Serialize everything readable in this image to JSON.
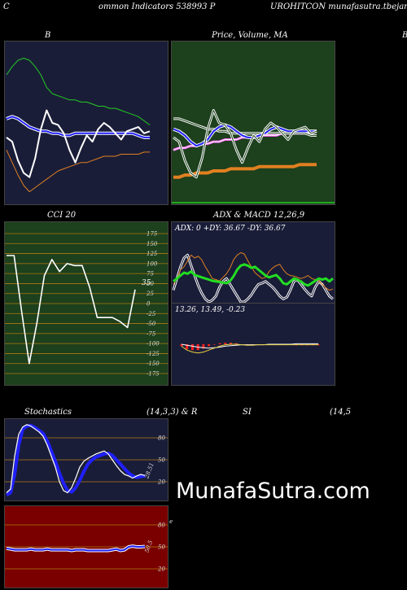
{
  "header": {
    "left": "C",
    "mid": "ommon  Indicators 538993 P",
    "right": "UROHITCON  munafasutra.tbejar.com"
  },
  "watermark": "MunafaSutra.com",
  "colors": {
    "navy": "#1a1d38",
    "green_bg": "#1d401d",
    "dark_red": "#7a0000",
    "price_white": "#ffffff",
    "band_green": "#22cc22",
    "band_orange": "#e08020",
    "ma_blue": "#2020ff",
    "adx_green": "#22dd22"
  },
  "panels": {
    "bollinger": {
      "title": "B"
    },
    "price_ma": {
      "title": "Price,  Volume,  MA",
      "edge_label": "B"
    },
    "cci": {
      "title": "CCI 20",
      "current_label": "35"
    },
    "adx": {
      "title": "ADX  & MACD 12,26,9",
      "info": "ADX: 0   +DY: 36.67 -DY: 36.67"
    },
    "macd": {
      "info": "13.26,   13.49,  -0.23"
    },
    "stochastic": {
      "title_left": "Stochastics",
      "title_mid": "(14,3,3) & R",
      "title_right": "SI",
      "title_far": "(14,5",
      "current_label": "28.51"
    },
    "rsi": {
      "current_label": "50.5",
      "edge_label": "e"
    }
  },
  "chart_data": [
    {
      "type": "line",
      "name": "bollinger",
      "x": [
        0,
        1,
        2,
        3,
        4,
        5,
        6,
        7,
        8,
        9,
        10,
        11,
        12,
        13,
        14,
        15,
        16,
        17,
        18,
        19,
        20,
        21,
        22,
        23,
        24,
        25
      ],
      "series": [
        {
          "role": "price",
          "values": [
            14.2,
            14.0,
            13.1,
            12.5,
            12.3,
            13.2,
            14.6,
            15.5,
            14.9,
            14.8,
            14.4,
            13.6,
            13.0,
            13.7,
            14.3,
            14.0,
            14.6,
            14.9,
            14.7,
            14.4,
            14.1,
            14.5,
            14.6,
            14.7,
            14.4,
            14.5
          ]
        },
        {
          "role": "upper",
          "values": [
            17.2,
            17.6,
            17.9,
            18.0,
            17.9,
            17.6,
            17.2,
            16.6,
            16.3,
            16.2,
            16.1,
            16.0,
            16.0,
            15.9,
            15.9,
            15.8,
            15.7,
            15.7,
            15.6,
            15.6,
            15.5,
            15.4,
            15.3,
            15.2,
            15.0,
            14.8
          ]
        },
        {
          "role": "middle",
          "values": [
            15.1,
            15.2,
            15.1,
            14.9,
            14.7,
            14.6,
            14.5,
            14.5,
            14.4,
            14.4,
            14.3,
            14.3,
            14.4,
            14.4,
            14.4,
            14.4,
            14.4,
            14.4,
            14.4,
            14.4,
            14.4,
            14.4,
            14.4,
            14.3,
            14.2,
            14.2
          ]
        },
        {
          "role": "lower",
          "values": [
            13.6,
            13.0,
            12.4,
            11.9,
            11.6,
            11.8,
            12.0,
            12.2,
            12.4,
            12.6,
            12.7,
            12.8,
            12.9,
            13.0,
            13.0,
            13.1,
            13.2,
            13.3,
            13.3,
            13.3,
            13.4,
            13.4,
            13.4,
            13.4,
            13.5,
            13.5
          ]
        }
      ]
    },
    {
      "type": "line",
      "name": "price_ma",
      "x": [
        0,
        1,
        2,
        3,
        4,
        5,
        6,
        7,
        8,
        9,
        10,
        11,
        12,
        13,
        14,
        15,
        16,
        17,
        18,
        19,
        20,
        21,
        22,
        23,
        24,
        25
      ],
      "series": [
        {
          "role": "price",
          "values": [
            14.2,
            14.0,
            13.1,
            12.5,
            12.3,
            13.2,
            14.6,
            15.5,
            14.9,
            14.8,
            14.4,
            13.6,
            13.0,
            13.7,
            14.3,
            14.0,
            14.6,
            14.9,
            14.7,
            14.4,
            14.1,
            14.5,
            14.6,
            14.7,
            14.4,
            14.5
          ]
        },
        {
          "role": "ma_short",
          "values": [
            14.6,
            14.5,
            14.3,
            14.0,
            13.8,
            13.9,
            14.1,
            14.5,
            14.7,
            14.8,
            14.7,
            14.5,
            14.3,
            14.2,
            14.2,
            14.3,
            14.4,
            14.6,
            14.7,
            14.6,
            14.5,
            14.5,
            14.5,
            14.5,
            14.5,
            14.5
          ]
        },
        {
          "role": "ma_long",
          "values": [
            15.1,
            15.1,
            15.0,
            14.9,
            14.8,
            14.7,
            14.6,
            14.6,
            14.5,
            14.5,
            14.4,
            14.4,
            14.4,
            14.4,
            14.4,
            14.4,
            14.4,
            14.4,
            14.4,
            14.4,
            14.4,
            14.4,
            14.4,
            14.4,
            14.3,
            14.3
          ]
        },
        {
          "role": "ma_mid",
          "values": [
            13.6,
            13.7,
            13.7,
            13.8,
            13.8,
            13.9,
            13.9,
            14.0,
            14.0,
            14.1,
            14.1,
            14.1,
            14.2,
            14.2,
            14.2,
            14.3,
            14.3,
            14.3,
            14.3,
            14.4,
            14.4,
            14.4,
            14.4,
            14.4,
            14.4,
            14.5
          ]
        },
        {
          "role": "ma_slow",
          "values": [
            12.3,
            12.3,
            12.4,
            12.4,
            12.5,
            12.5,
            12.5,
            12.6,
            12.6,
            12.6,
            12.7,
            12.7,
            12.7,
            12.7,
            12.7,
            12.8,
            12.8,
            12.8,
            12.8,
            12.8,
            12.8,
            12.8,
            12.9,
            12.9,
            12.9,
            12.9
          ]
        }
      ]
    },
    {
      "type": "line",
      "name": "cci",
      "ylim": [
        -175,
        175
      ],
      "yticks": [
        175,
        150,
        125,
        100,
        75,
        50,
        25,
        0,
        -25,
        -50,
        -75,
        -100,
        -125,
        -150,
        -175
      ],
      "x": [
        0,
        1,
        2,
        3,
        4,
        5,
        6,
        7,
        8,
        9,
        10,
        11,
        12,
        13,
        14,
        15,
        16,
        17
      ],
      "values": [
        120,
        120,
        -20,
        -150,
        -50,
        70,
        110,
        80,
        100,
        95,
        95,
        40,
        -35,
        -35,
        -35,
        -45,
        -60,
        35
      ]
    },
    {
      "type": "line",
      "name": "adx",
      "x": [
        0,
        1,
        2,
        3,
        4,
        5,
        6,
        7,
        8,
        9,
        10,
        11,
        12,
        13,
        14,
        15,
        16,
        17,
        18,
        19,
        20,
        21,
        22,
        23,
        24,
        25,
        26,
        27,
        28,
        29,
        30,
        31,
        32,
        33,
        34,
        35,
        36,
        37,
        38,
        39,
        40,
        41,
        42,
        43,
        44,
        45
      ],
      "series": [
        {
          "role": "adx",
          "values": [
            35,
            40,
            45,
            50,
            48,
            52,
            46,
            44,
            42,
            40,
            38,
            36,
            35,
            34,
            33,
            32,
            36,
            44,
            55,
            62,
            64,
            62,
            58,
            60,
            55,
            50,
            45,
            42,
            44,
            46,
            40,
            32,
            30,
            35,
            40,
            38,
            35,
            30,
            28,
            32,
            36,
            40,
            38,
            40,
            35,
            40
          ]
        },
        {
          "role": "plus_dy",
          "values": [
            30,
            40,
            55,
            60,
            70,
            80,
            75,
            78,
            72,
            60,
            50,
            40,
            38,
            36,
            42,
            48,
            58,
            72,
            80,
            84,
            82,
            70,
            60,
            50,
            45,
            40,
            42,
            52,
            58,
            62,
            64,
            55,
            48,
            45,
            44,
            42,
            40,
            42,
            45,
            40,
            38,
            36,
            30,
            24,
            20,
            22
          ]
        },
        {
          "role": "minus_dy",
          "values": [
            20,
            40,
            60,
            75,
            80,
            62,
            45,
            28,
            15,
            5,
            0,
            3,
            10,
            25,
            35,
            40,
            30,
            20,
            10,
            0,
            0,
            5,
            12,
            22,
            30,
            32,
            35,
            30,
            25,
            18,
            10,
            5,
            8,
            20,
            35,
            38,
            30,
            22,
            15,
            10,
            25,
            35,
            30,
            20,
            10,
            5
          ]
        }
      ]
    },
    {
      "type": "line",
      "name": "macd",
      "x": [
        0,
        1,
        2,
        3,
        4,
        5,
        6,
        7,
        8,
        9,
        10,
        11,
        12,
        13,
        14,
        15,
        16,
        17,
        18,
        19,
        20,
        21,
        22,
        23,
        24,
        25
      ],
      "series": [
        {
          "role": "macd",
          "values": [
            13.0,
            12.2,
            11.8,
            11.6,
            11.8,
            12.2,
            12.6,
            13.0,
            13.3,
            13.4,
            13.4,
            13.3,
            13.2,
            13.2,
            13.3,
            13.3,
            13.3,
            13.3,
            13.3,
            13.3,
            13.3,
            13.3,
            13.3,
            13.3,
            13.3,
            13.3
          ]
        },
        {
          "role": "signal",
          "values": [
            13.4,
            13.2,
            13.0,
            12.8,
            12.7,
            12.6,
            12.7,
            12.8,
            13.0,
            13.1,
            13.2,
            13.3,
            13.3,
            13.3,
            13.3,
            13.3,
            13.4,
            13.4,
            13.4,
            13.4,
            13.4,
            13.5,
            13.5,
            13.5,
            13.5,
            13.5
          ]
        },
        {
          "role": "histogram",
          "values": [
            -0.4,
            -1.0,
            -1.2,
            -1.2,
            -0.9,
            -0.4,
            -0.1,
            0.2,
            0.3,
            0.3,
            0.2,
            0.0,
            -0.1,
            -0.1,
            0.0,
            0.0,
            -0.1,
            -0.1,
            -0.1,
            -0.1,
            -0.1,
            -0.2,
            -0.2,
            -0.2,
            -0.2,
            -0.2
          ]
        }
      ]
    },
    {
      "type": "line",
      "name": "stochastic",
      "ylim": [
        0,
        100
      ],
      "yticks": [
        80,
        50,
        20
      ],
      "x": [
        0,
        1,
        2,
        3,
        4,
        5,
        6,
        7,
        8,
        9,
        10,
        11,
        12,
        13,
        14,
        15,
        16,
        17,
        18,
        19,
        20,
        21,
        22,
        23,
        24,
        25,
        26,
        27,
        28,
        29,
        30,
        31,
        32,
        33,
        34
      ],
      "series": [
        {
          "role": "k",
          "values": [
            5,
            10,
            55,
            85,
            95,
            98,
            96,
            92,
            88,
            82,
            70,
            55,
            40,
            20,
            8,
            5,
            12,
            25,
            40,
            48,
            52,
            55,
            58,
            60,
            62,
            58,
            50,
            42,
            35,
            30,
            28,
            25,
            28,
            30,
            28.51
          ]
        },
        {
          "role": "d",
          "values": [
            2,
            5,
            30,
            70,
            92,
            96,
            97,
            94,
            90,
            86,
            76,
            62,
            48,
            32,
            18,
            8,
            6,
            12,
            22,
            34,
            44,
            50,
            54,
            56,
            58,
            59,
            56,
            50,
            44,
            38,
            32,
            28,
            26,
            27,
            28
          ]
        }
      ]
    },
    {
      "type": "line",
      "name": "rsi",
      "ylim": [
        0,
        100
      ],
      "yticks": [
        80,
        50,
        20
      ],
      "x": [
        0,
        1,
        2,
        3,
        4,
        5,
        6,
        7,
        8,
        9,
        10,
        11,
        12,
        13,
        14,
        15,
        16,
        17,
        18,
        19,
        20,
        21,
        22,
        23,
        24,
        25,
        26,
        27,
        28,
        29,
        30,
        31,
        32,
        33,
        34
      ],
      "series": [
        {
          "role": "rsi",
          "values": [
            48,
            47,
            46,
            46,
            46,
            46,
            47,
            46,
            46,
            46,
            47,
            46,
            46,
            46,
            46,
            46,
            45,
            46,
            46,
            46,
            45,
            45,
            45,
            45,
            45,
            45,
            46,
            47,
            45,
            46,
            50,
            51,
            50,
            50,
            50.5
          ]
        }
      ]
    }
  ]
}
